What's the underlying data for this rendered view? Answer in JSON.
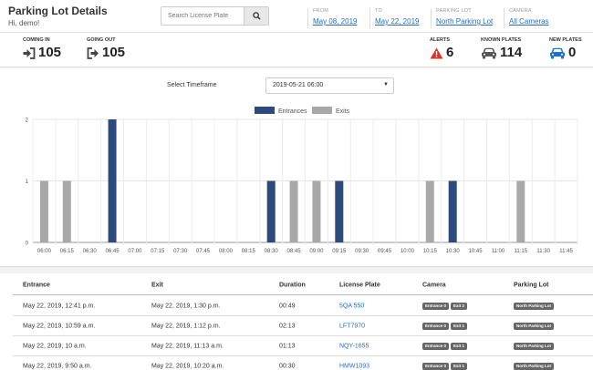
{
  "header": {
    "title": "Parking Lot Details",
    "greeting": "Hi, demo!",
    "search_placeholder": "Search License Plate",
    "filters": [
      {
        "label": "FROM",
        "value": "May 08, 2019"
      },
      {
        "label": "TO",
        "value": "May 22, 2019"
      },
      {
        "label": "PARKING LOT",
        "value": "North Parking Lot"
      },
      {
        "label": "CAMERA",
        "value": "All Cameras"
      }
    ]
  },
  "stats": {
    "coming_in": {
      "label": "COMING IN",
      "value": "105"
    },
    "going_out": {
      "label": "GOING OUT",
      "value": "105"
    },
    "alerts": {
      "label": "ALERTS",
      "value": "6"
    },
    "known_plates": {
      "label": "KNOWN PLATES",
      "value": "114"
    },
    "new_plates": {
      "label": "NEW PLATES",
      "value": "0"
    }
  },
  "colors": {
    "entrances": "#2c4a7c",
    "exits": "#a8a8a8",
    "alert": "#d9332a",
    "new_plates": "#1a73c9"
  },
  "timeframe": {
    "label": "Select Timeframe",
    "value": "2019-05-21 06:00"
  },
  "chart_data": {
    "type": "bar",
    "categories": [
      "06:00",
      "06:15",
      "06:30",
      "06:45",
      "07:00",
      "07:15",
      "07:30",
      "07:45",
      "08:00",
      "08:15",
      "08:30",
      "08:45",
      "09:00",
      "09:15",
      "09:30",
      "09:45",
      "10:00",
      "10:15",
      "10:30",
      "10:45",
      "11:00",
      "11:15",
      "11:30",
      "11:45"
    ],
    "series": [
      {
        "name": "Entrances",
        "values": [
          0,
          0,
          0,
          2,
          0,
          0,
          0,
          0,
          0,
          0,
          1,
          0,
          0,
          1,
          0,
          0,
          0,
          0,
          1,
          0,
          0,
          0,
          0,
          0
        ]
      },
      {
        "name": "Exits",
        "values": [
          1,
          1,
          0,
          0,
          0,
          0,
          0,
          0,
          0,
          0,
          0,
          1,
          1,
          0,
          0,
          0,
          0,
          1,
          0,
          0,
          0,
          1,
          0,
          0
        ]
      }
    ],
    "ylim": [
      0,
      2
    ],
    "yticks": [
      "0",
      "1",
      "2"
    ],
    "legend": "top-center",
    "grid": true
  },
  "table": {
    "columns": [
      "Entrance",
      "Exit",
      "Duration",
      "License Plate",
      "Camera",
      "Parking Lot"
    ],
    "rows": [
      {
        "entrance": "May 22, 2019, 12:41 p.m.",
        "exit": "May 22, 2019, 1:30 p.m.",
        "duration": "00:49",
        "plate": "5QA 550",
        "camera_in": "Entrance 0",
        "camera_out": "Exit 2",
        "lot": "North Parking Lot"
      },
      {
        "entrance": "May 22, 2019, 10:59 a.m.",
        "exit": "May 22, 2019, 1:12 p.m.",
        "duration": "02:13",
        "plate": "LFT7970",
        "camera_in": "Entrance 0",
        "camera_out": "Exit 1",
        "lot": "North Parking Lot"
      },
      {
        "entrance": "May 22, 2019, 10 a.m.",
        "exit": "May 22, 2019, 11:13 a.m.",
        "duration": "01:13",
        "plate": "NQY-1655",
        "camera_in": "Entrance 0",
        "camera_out": "Exit 1",
        "lot": "North Parking Lot"
      },
      {
        "entrance": "May 22, 2019, 9:50 a.m.",
        "exit": "May 22, 2019, 10:20 a.m.",
        "duration": "00:30",
        "plate": "HMW1093",
        "camera_in": "Entrance 0",
        "camera_out": "Exit 1",
        "lot": "North Parking Lot"
      }
    ]
  }
}
